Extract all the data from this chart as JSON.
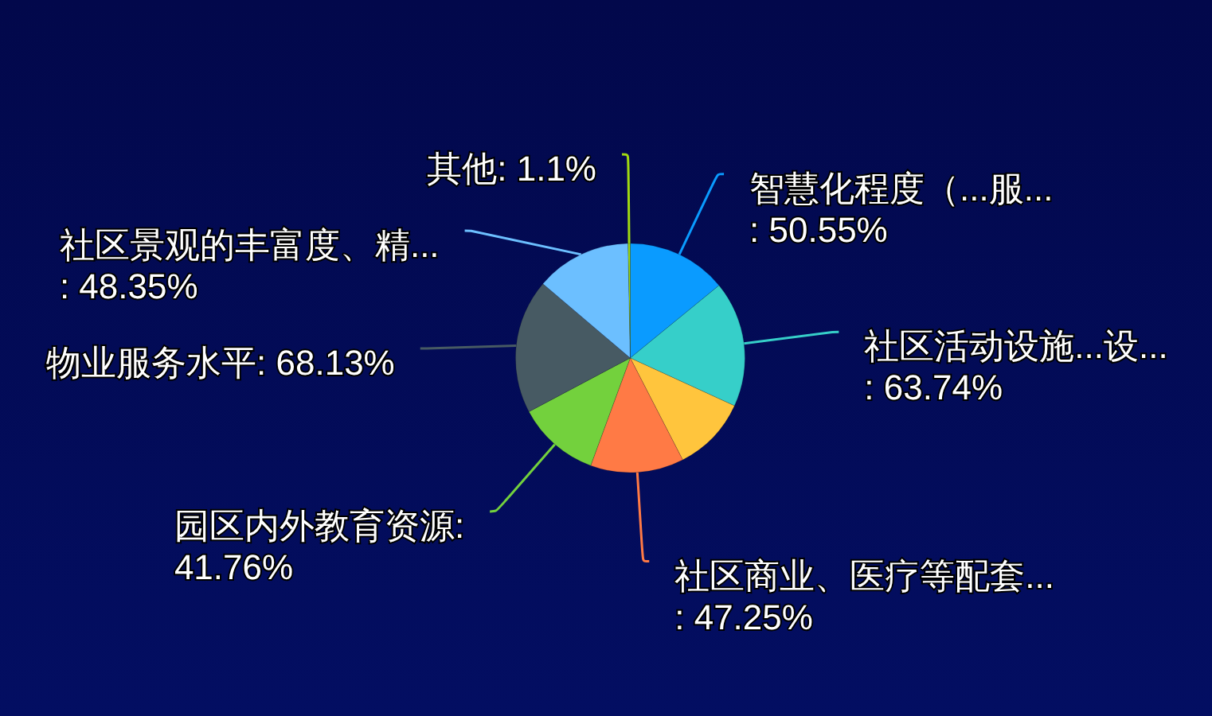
{
  "chart_data": {
    "type": "pie",
    "categories": [
      "智慧化程度（...服...",
      "社区活动设施...设...",
      null,
      "社区商业、医疗等配套...",
      "园区内外教育资源",
      "物业服务水平",
      "社区景观的丰富度、精...",
      "其他"
    ],
    "values": [
      50.55,
      63.74,
      38,
      47.25,
      41.76,
      68.13,
      48.35,
      1.1
    ],
    "value_labels": [
      ": 50.55%",
      ": 63.74%",
      null,
      ": 47.25%",
      ": 41.76%",
      ": 68.13%",
      ": 48.35%",
      ": 1.1%"
    ],
    "colors": [
      "#0a9bff",
      "#36cfc9",
      "#ffc53d",
      "#ff7a45",
      "#73d13d",
      "#475a63",
      "#6cbfff",
      "#a0d911"
    ]
  }
}
